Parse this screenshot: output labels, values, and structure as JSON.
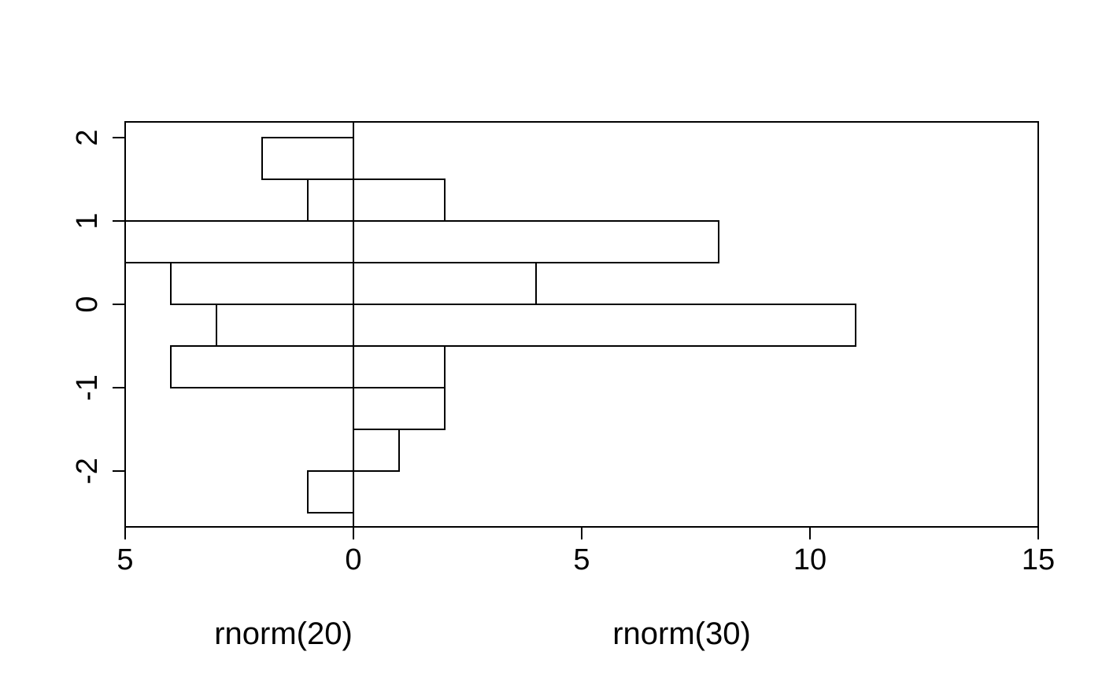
{
  "figure": {
    "background": "#ffffff",
    "foreground": "#000000"
  },
  "chart_data": {
    "type": "bar",
    "variant": "back-to-back-histogram",
    "orientation": "horizontal",
    "title": "",
    "xlabel_left": "rnorm(20)",
    "xlabel_right": "rnorm(30)",
    "ylabel": "",
    "bin_breaks": [
      -2.5,
      -2.0,
      -1.5,
      -1.0,
      -0.5,
      0.0,
      0.5,
      1.0,
      1.5,
      2.0
    ],
    "series": [
      {
        "name": "rnorm(20)",
        "side": "left",
        "counts": [
          1,
          0,
          0,
          4,
          3,
          4,
          5,
          1,
          2
        ]
      },
      {
        "name": "rnorm(30)",
        "side": "right",
        "counts": [
          0,
          1,
          2,
          2,
          11,
          4,
          8,
          2,
          0
        ]
      }
    ],
    "x_ticks": [
      {
        "value": -5,
        "label": "5"
      },
      {
        "value": 0,
        "label": "0"
      },
      {
        "value": 5,
        "label": "5"
      },
      {
        "value": 10,
        "label": "10"
      },
      {
        "value": 15,
        "label": "15"
      }
    ],
    "y_ticks": [
      {
        "value": 2,
        "label": "2"
      },
      {
        "value": 1,
        "label": "1"
      },
      {
        "value": 0,
        "label": "0"
      },
      {
        "value": -1,
        "label": "-1"
      },
      {
        "value": -2,
        "label": "-2"
      }
    ],
    "xlim": [
      -5,
      15
    ],
    "ylim": [
      -2.67,
      2.19
    ],
    "grid": false,
    "legend": "none",
    "bar_fill": "#ffffff",
    "line_color": "#000000",
    "center_line_x": 0
  }
}
